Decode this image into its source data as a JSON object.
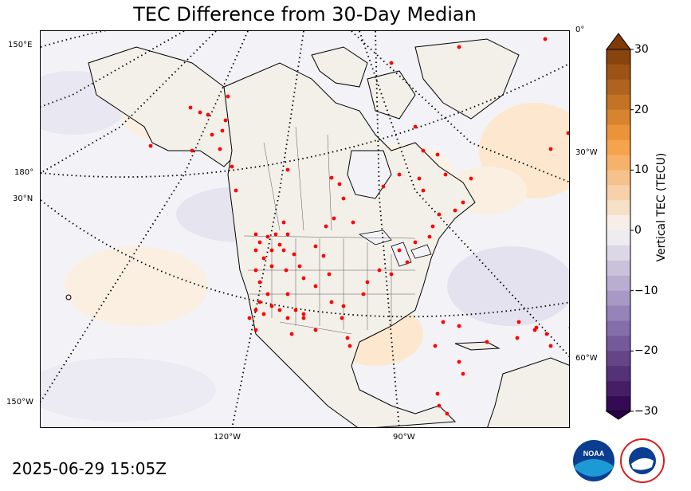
{
  "title": "TEC Difference from 30-Day Median",
  "timestamp": "2025-06-29 15:05Z",
  "colorbar": {
    "label": "Vertical TEC (TECU)",
    "ticks": [
      "30",
      "20",
      "10",
      "0",
      "−10",
      "−20",
      "−30"
    ],
    "min": -30,
    "max": 30,
    "low_color": "#2d004b",
    "mid_color": "#f7f7f7",
    "high_color": "#7f3b08"
  },
  "graticule_labels": {
    "lon_150e": "150°E",
    "lon_180": "180°",
    "lat_30n": "30°N",
    "lon_150w": "150°W",
    "lon_0": "0°",
    "lon_30w": "30°W",
    "lon_60w": "60°W",
    "lon_120w": "120°W",
    "lon_90w": "90°W"
  },
  "logos": {
    "noaa": "NOAA",
    "nws": "NATIONAL WEATHER SERVICE"
  },
  "stations_color": "#ff0000"
}
